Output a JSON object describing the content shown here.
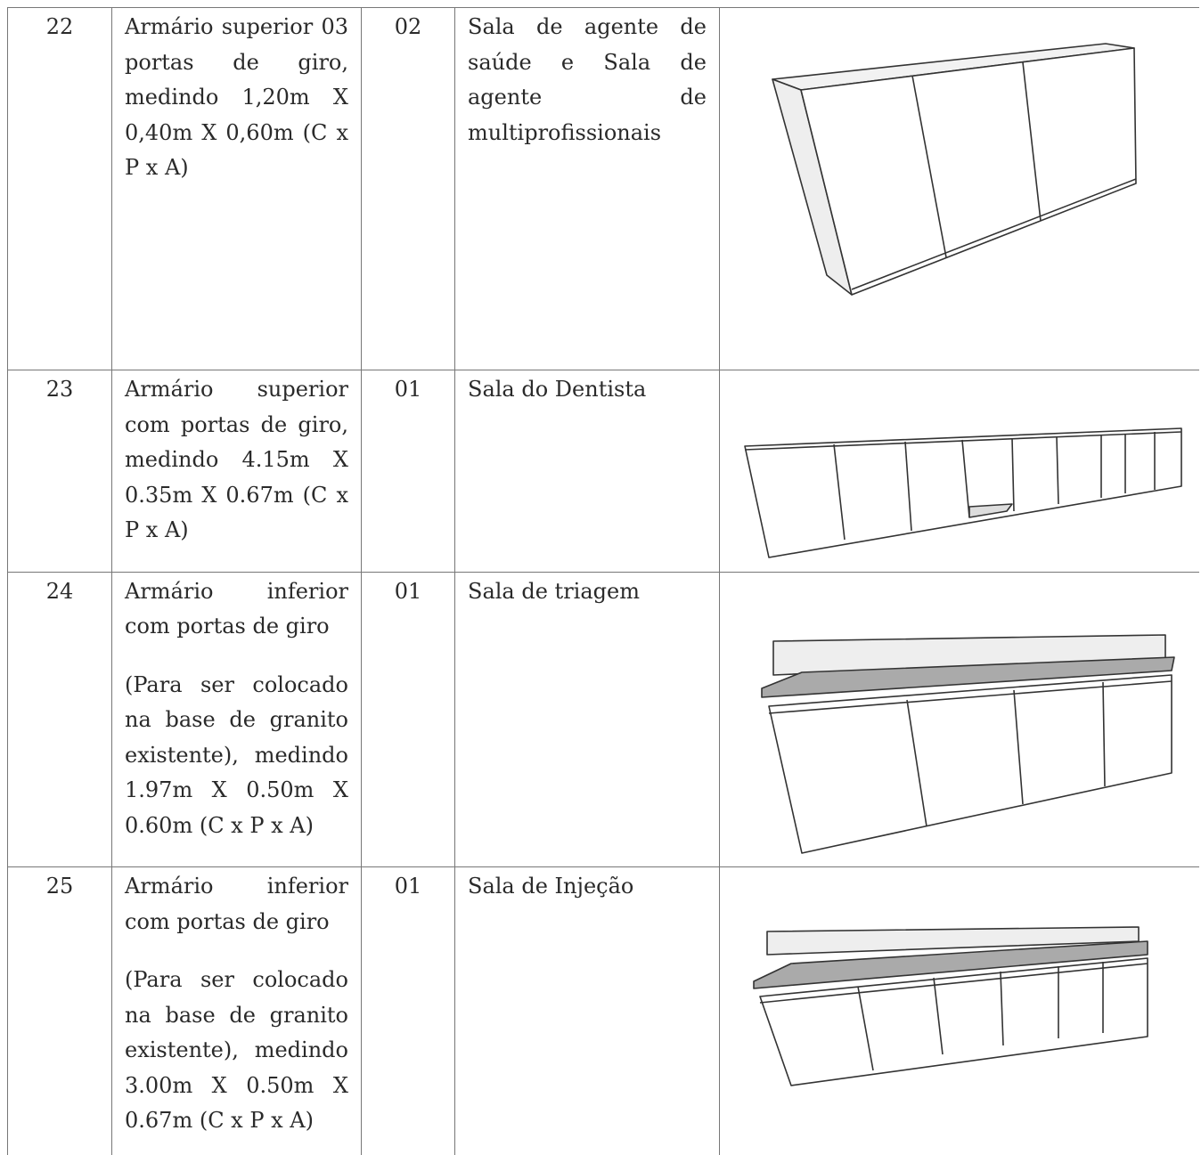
{
  "table": {
    "rows": [
      {
        "item": "22",
        "description": [
          "Armário superior 03 portas de giro, medindo 1,20m X 0,40m X 0,60m (C x P x A)"
        ],
        "quantity": "02",
        "location": "Sala de agente de saúde e Sala de agente de multiprofissionais"
      },
      {
        "item": "23",
        "description": [
          "Armário superior com portas de giro, medindo 4.15m X 0.35m X 0.67m (C x P x A)"
        ],
        "quantity": "01",
        "location": "Sala do Dentista"
      },
      {
        "item": "24",
        "description": [
          "Armário inferior com portas de giro",
          "(Para ser colocado na base de granito existente), medindo 1.97m X 0.50m X 0.60m (C x P x A)"
        ],
        "quantity": "01",
        "location": "Sala de triagem"
      },
      {
        "item": "25",
        "description": [
          "Armário inferior com portas de giro",
          "(Para ser colocado na base de granito existente), medindo 3.00m X 0.50m X 0.67m (C x P x A)"
        ],
        "quantity": "01",
        "location": "Sala de Injeção"
      }
    ]
  }
}
